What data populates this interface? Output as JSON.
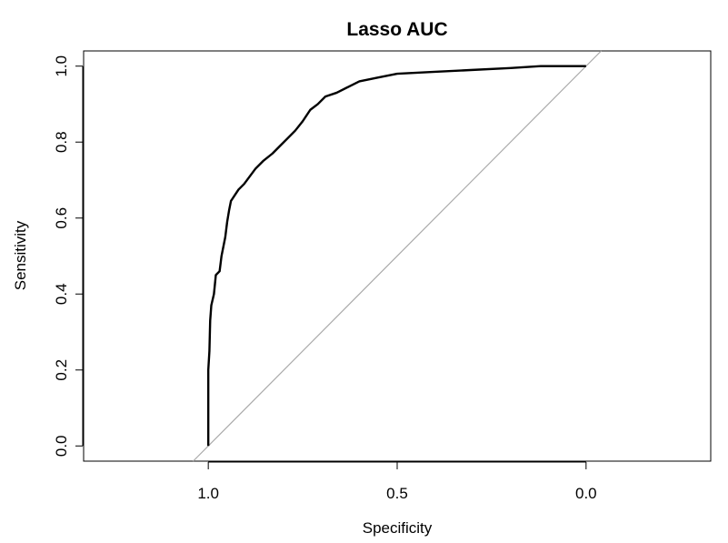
{
  "chart_data": {
    "type": "line",
    "title": "Lasso AUC",
    "xlabel": "Specificity",
    "ylabel": "Sensitivity",
    "x_reversed": true,
    "xlim": [
      1.33,
      -0.33
    ],
    "ylim": [
      -0.04,
      1.04
    ],
    "x_ticks": [
      "1.0",
      "0.5",
      "0.0"
    ],
    "y_ticks": [
      "0.0",
      "0.2",
      "0.4",
      "0.6",
      "0.8",
      "1.0"
    ],
    "x_tick_values": [
      1.0,
      0.5,
      0.0
    ],
    "y_tick_values": [
      0.0,
      0.2,
      0.4,
      0.6,
      0.8,
      1.0
    ],
    "grid": false,
    "legend": "none",
    "reference_line": {
      "from": [
        1.0,
        0.0
      ],
      "to": [
        0.0,
        1.0
      ],
      "color": "#aaaaaa"
    },
    "series": [
      {
        "color": "#000000",
        "points": [
          [
            1.0,
            0.0
          ],
          [
            1.0,
            0.2
          ],
          [
            0.997,
            0.25
          ],
          [
            0.995,
            0.33
          ],
          [
            0.992,
            0.37
          ],
          [
            0.985,
            0.4
          ],
          [
            0.98,
            0.45
          ],
          [
            0.97,
            0.46
          ],
          [
            0.965,
            0.5
          ],
          [
            0.955,
            0.55
          ],
          [
            0.95,
            0.59
          ],
          [
            0.945,
            0.62
          ],
          [
            0.94,
            0.645
          ],
          [
            0.93,
            0.66
          ],
          [
            0.92,
            0.675
          ],
          [
            0.905,
            0.69
          ],
          [
            0.89,
            0.71
          ],
          [
            0.875,
            0.73
          ],
          [
            0.855,
            0.75
          ],
          [
            0.83,
            0.77
          ],
          [
            0.81,
            0.79
          ],
          [
            0.79,
            0.81
          ],
          [
            0.77,
            0.83
          ],
          [
            0.75,
            0.855
          ],
          [
            0.73,
            0.885
          ],
          [
            0.71,
            0.9
          ],
          [
            0.69,
            0.92
          ],
          [
            0.66,
            0.93
          ],
          [
            0.63,
            0.945
          ],
          [
            0.6,
            0.96
          ],
          [
            0.55,
            0.97
          ],
          [
            0.5,
            0.98
          ],
          [
            0.4,
            0.985
          ],
          [
            0.3,
            0.99
          ],
          [
            0.2,
            0.995
          ],
          [
            0.12,
            1.0
          ],
          [
            0.0,
            1.0
          ]
        ]
      }
    ]
  }
}
